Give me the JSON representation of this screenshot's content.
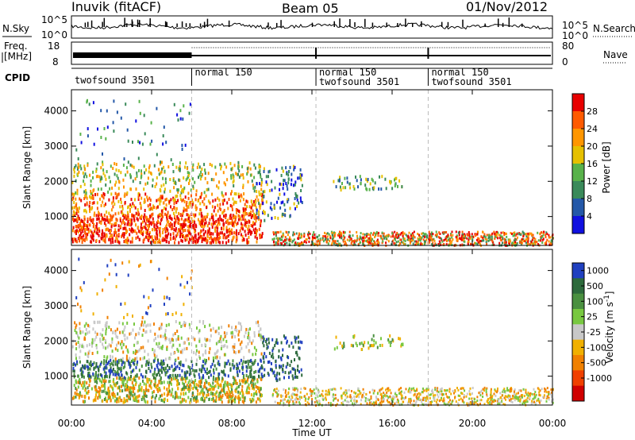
{
  "header": {
    "station": "Inuvik (fitACF)",
    "beam": "Beam 05",
    "date": "01/Nov/2012"
  },
  "panels": {
    "nsky_label": "N.Sky",
    "nsearch_label": "N.Search",
    "freq_label_1": "Freq.",
    "freq_label_2": "[MHz]",
    "nave_label": "Nave",
    "cpid_label": "CPID",
    "nsky_ticks": [
      "10^5",
      "10^0"
    ],
    "nsearch_ticks": [
      "10^5",
      "10^0"
    ],
    "freq_ticks": [
      "18",
      "8"
    ],
    "nave_ticks": [
      "80",
      "0"
    ],
    "cpid_segments": [
      {
        "start": 0,
        "lines": [
          "twofsound 3501"
        ]
      },
      {
        "start": 6,
        "lines": [
          "normal 150"
        ]
      },
      {
        "start": 12.2,
        "lines": [
          "normal 150",
          "twofsound 3501"
        ]
      },
      {
        "start": 17.8,
        "lines": [
          "normal 150",
          "twofsound 3501"
        ]
      }
    ]
  },
  "colors": {
    "power": [
      "#1010e0",
      "#2458a8",
      "#3a8a5a",
      "#58b24a",
      "#e6c000",
      "#ff9600",
      "#ff5a00",
      "#e80000"
    ],
    "velocity": [
      "#2040c0",
      "#2d6a3c",
      "#4a9040",
      "#78c840",
      "#c8c8c8",
      "#f0b000",
      "#f08000",
      "#f04000",
      "#d00000"
    ]
  },
  "chart_data": [
    {
      "type": "heatmap",
      "parameter": "Power",
      "xlabel": "",
      "ylabel": "Slant Range [km]",
      "xlim": [
        0,
        24
      ],
      "ylim": [
        180,
        4600
      ],
      "yticks": [
        "1000",
        "2000",
        "3000",
        "4000"
      ],
      "colorbar_label": "Power [dB]",
      "colorbar_ticks": [
        "4",
        "8",
        "12",
        "16",
        "20",
        "24",
        "28"
      ],
      "colorbar_range": [
        0,
        32
      ]
    },
    {
      "type": "heatmap",
      "parameter": "Velocity",
      "xlabel": "Time UT",
      "ylabel": "Slant Range [km]",
      "xlim": [
        0,
        24
      ],
      "ylim": [
        180,
        4600
      ],
      "xticks": [
        "00:00",
        "04:00",
        "08:00",
        "12:00",
        "16:00",
        "20:00",
        "00:00"
      ],
      "yticks": [
        "1000",
        "2000",
        "3000",
        "4000"
      ],
      "colorbar_label": "Velocity [m s",
      "colorbar_label_sup": "-1",
      "colorbar_label_end": "]",
      "colorbar_ticks": [
        "1000",
        "500",
        "100",
        "25",
        "-25",
        "-100",
        "-500",
        "-1000"
      ]
    }
  ]
}
